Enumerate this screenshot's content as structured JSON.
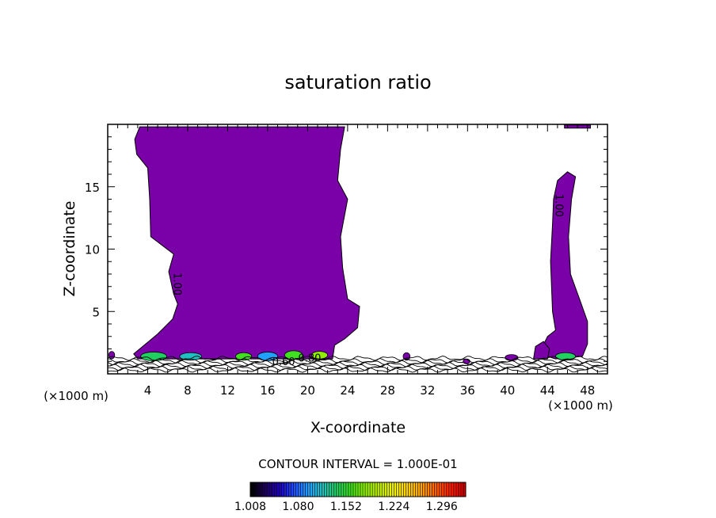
{
  "chart_data": {
    "type": "contour",
    "title": "saturation ratio",
    "xlabel": "X-coordinate",
    "ylabel": "Z-coordinate",
    "x_unit_left": "(×1000 m)",
    "x_unit_right": "(×1000 m)",
    "xlim": [
      0,
      50
    ],
    "ylim": [
      0,
      20
    ],
    "x_ticks": [
      4,
      8,
      12,
      16,
      20,
      24,
      28,
      32,
      36,
      40,
      44,
      48
    ],
    "y_ticks": [
      5,
      10,
      15
    ],
    "contour_labels": [
      {
        "text": "1.00",
        "x": 6.6,
        "z": 7.2
      },
      {
        "text": "1.00",
        "x": 44.8,
        "z": 13.5
      },
      {
        "text": "0.60",
        "x": 17.6,
        "z": 0.7
      },
      {
        "text": "0.80",
        "x": 20.2,
        "z": 1.0
      }
    ],
    "contour_interval_text": "CONTOUR INTERVAL = 1.000E-01",
    "colorbar": {
      "min": 1.008,
      "max": 1.332,
      "tick_labels": [
        "1.008",
        "1.080",
        "1.152",
        "1.224",
        "1.296"
      ],
      "colors": [
        "#000000",
        "#1f0060",
        "#2000c0",
        "#2050ff",
        "#20a0ff",
        "#20c0c0",
        "#20d060",
        "#40e020",
        "#90f000",
        "#c0f000",
        "#f0f000",
        "#ffd000",
        "#ffa000",
        "#ff6000",
        "#ff2000",
        "#d00000"
      ]
    },
    "fill_color": "#7a00a8",
    "regions": [
      {
        "name": "left supersaturated plume",
        "outline": [
          [
            3.0,
            1.2
          ],
          [
            2.6,
            1.6
          ],
          [
            3.2,
            2.0
          ],
          [
            5.0,
            3.2
          ],
          [
            6.5,
            4.4
          ],
          [
            7.0,
            5.6
          ],
          [
            6.6,
            6.4
          ],
          [
            6.1,
            8.2
          ],
          [
            6.6,
            9.6
          ],
          [
            4.3,
            11.0
          ],
          [
            4.2,
            14.0
          ],
          [
            4.0,
            16.5
          ],
          [
            2.9,
            17.6
          ],
          [
            2.7,
            18.8
          ],
          [
            3.2,
            19.8
          ],
          [
            23.7,
            19.8
          ],
          [
            23.3,
            18.0
          ],
          [
            23.0,
            15.5
          ],
          [
            24.0,
            14.0
          ],
          [
            23.3,
            11.0
          ],
          [
            23.5,
            8.5
          ],
          [
            24.0,
            6.0
          ],
          [
            25.2,
            5.4
          ],
          [
            25.0,
            3.7
          ],
          [
            23.7,
            2.8
          ],
          [
            22.7,
            2.3
          ],
          [
            22.5,
            1.2
          ]
        ]
      },
      {
        "name": "right supersaturated column",
        "outline": [
          [
            44.8,
            1.2
          ],
          [
            44.0,
            1.4
          ],
          [
            43.5,
            2.2
          ],
          [
            44.0,
            3.0
          ],
          [
            44.8,
            3.5
          ],
          [
            44.5,
            5.0
          ],
          [
            44.3,
            9.0
          ],
          [
            44.5,
            12.0
          ],
          [
            44.6,
            14.0
          ],
          [
            45.0,
            15.5
          ],
          [
            46.0,
            16.2
          ],
          [
            46.8,
            15.8
          ],
          [
            46.4,
            14.0
          ],
          [
            46.1,
            11.0
          ],
          [
            46.3,
            8.0
          ],
          [
            47.2,
            6.0
          ],
          [
            48.0,
            4.2
          ],
          [
            48.0,
            2.4
          ],
          [
            47.5,
            1.4
          ]
        ]
      },
      {
        "name": "right base lobe",
        "outline": [
          [
            42.6,
            1.2
          ],
          [
            42.8,
            2.2
          ],
          [
            43.6,
            2.6
          ],
          [
            44.2,
            2.0
          ],
          [
            44.0,
            1.2
          ]
        ]
      },
      {
        "name": "top-right sliver",
        "outline": [
          [
            45.7,
            19.7
          ],
          [
            48.3,
            19.7
          ],
          [
            48.3,
            19.95
          ],
          [
            45.7,
            19.95
          ]
        ]
      }
    ],
    "base_blobs": [
      {
        "x": 4.6,
        "z": 1.4,
        "w": 2.6,
        "h": 0.35,
        "color": "#20d060"
      },
      {
        "x": 8.3,
        "z": 1.4,
        "w": 2.2,
        "h": 0.3,
        "color": "#20c0c0"
      },
      {
        "x": 13.6,
        "z": 1.4,
        "w": 1.6,
        "h": 0.3,
        "color": "#40e020"
      },
      {
        "x": 16.0,
        "z": 1.4,
        "w": 2.0,
        "h": 0.35,
        "color": "#20a0ff"
      },
      {
        "x": 18.6,
        "z": 1.5,
        "w": 1.8,
        "h": 0.35,
        "color": "#40e020"
      },
      {
        "x": 21.2,
        "z": 1.5,
        "w": 1.6,
        "h": 0.3,
        "color": "#90f000"
      },
      {
        "x": 45.8,
        "z": 1.4,
        "w": 2.0,
        "h": 0.3,
        "color": "#20d060"
      },
      {
        "x": 40.4,
        "z": 1.3,
        "w": 1.3,
        "h": 0.25,
        "color": "#7a00a8"
      },
      {
        "x": 29.9,
        "z": 1.4,
        "w": 0.7,
        "h": 0.3,
        "color": "#7a00a8"
      },
      {
        "x": 35.9,
        "z": 1.0,
        "w": 0.7,
        "h": 0.2,
        "color": "#7a00a8"
      },
      {
        "x": 0.4,
        "z": 1.5,
        "w": 0.6,
        "h": 0.3,
        "color": "#7a00a8"
      }
    ]
  }
}
